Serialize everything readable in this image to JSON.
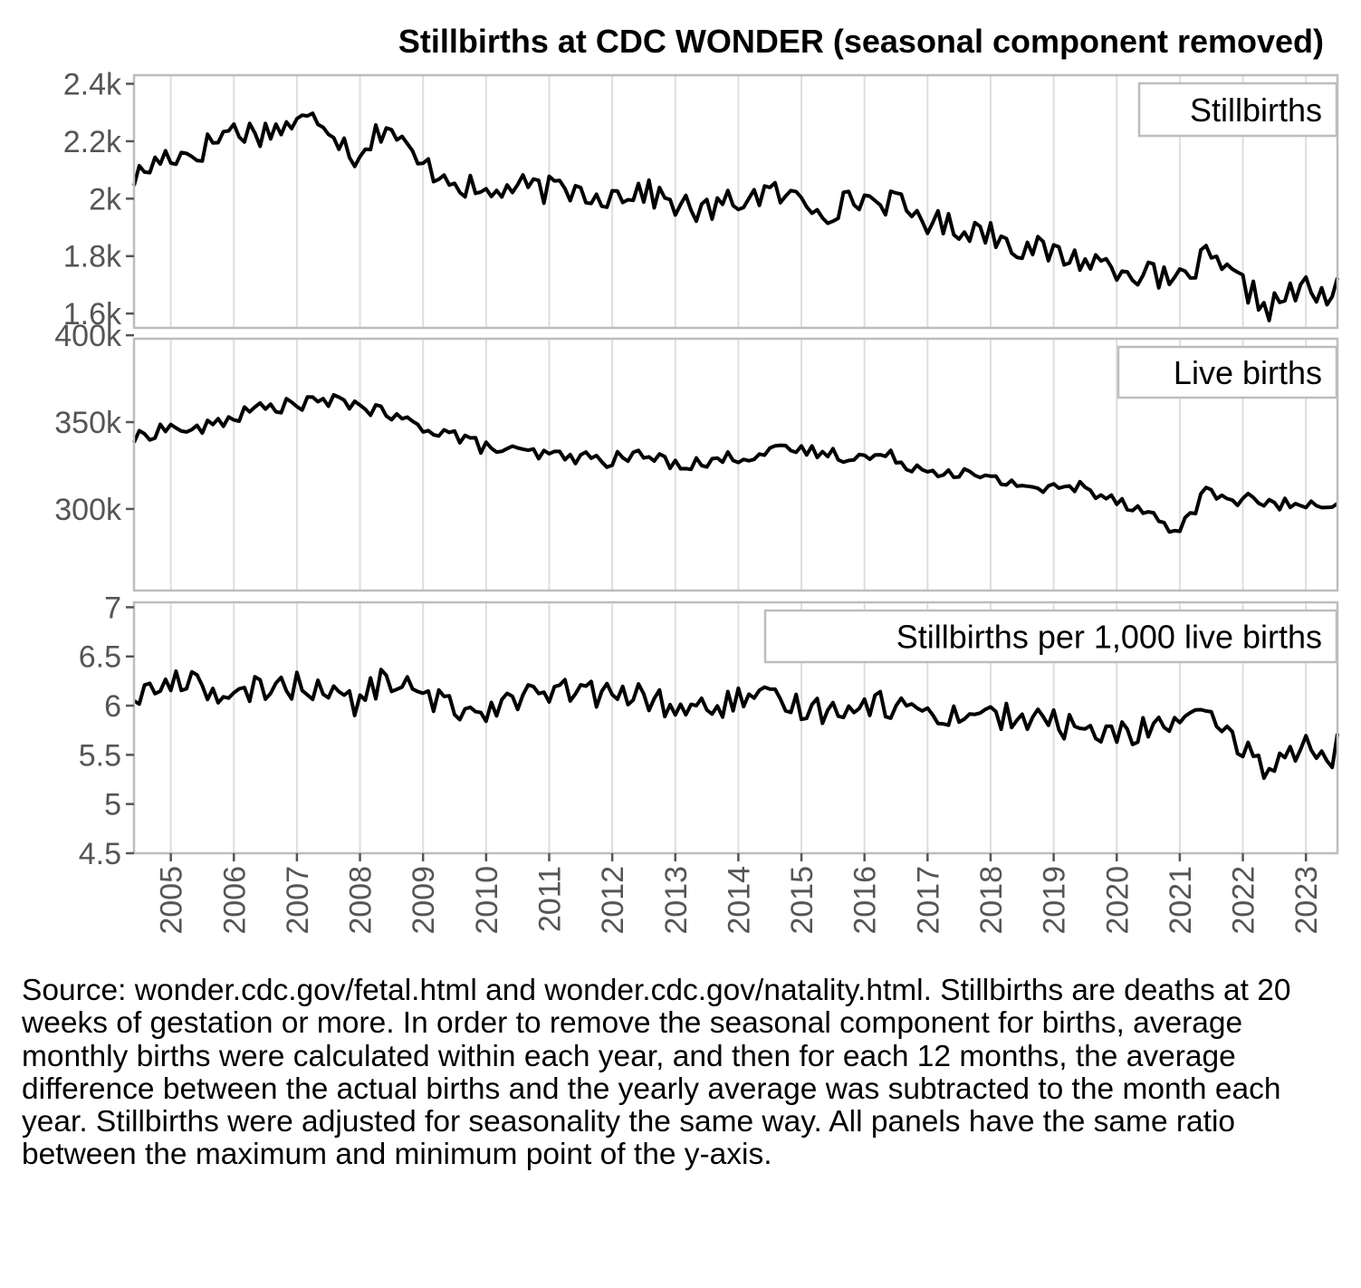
{
  "chart_data": {
    "type": "line",
    "title": "Stillbirths at CDC WONDER (seasonal component removed)",
    "x_tick_labels": [
      "2005",
      "2006",
      "2007",
      "2008",
      "2009",
      "2010",
      "2011",
      "2012",
      "2013",
      "2014",
      "2015",
      "2016",
      "2017",
      "2018",
      "2019",
      "2020",
      "2021",
      "2022",
      "2023"
    ],
    "x_range": [
      "2004-06",
      "2023-07"
    ],
    "grid": true,
    "panels": [
      {
        "name": "Stillbirths",
        "ylim": [
          1550,
          2430
        ],
        "y_ticks": [
          1600,
          1800,
          2000,
          2200,
          2400
        ],
        "y_tick_labels": [
          "1.6k",
          "1.8k",
          "2k",
          "2.2k",
          "2.4k"
        ],
        "knots": [
          [
            "2004-06",
            2070
          ],
          [
            "2004-12",
            2150
          ],
          [
            "2005-06",
            2160
          ],
          [
            "2005-12",
            2240
          ],
          [
            "2006-06",
            2230
          ],
          [
            "2006-12",
            2260
          ],
          [
            "2007-06",
            2280
          ],
          [
            "2007-12",
            2150
          ],
          [
            "2008-06",
            2260
          ],
          [
            "2008-12",
            2120
          ],
          [
            "2009-06",
            2080
          ],
          [
            "2009-12",
            2010
          ],
          [
            "2010-06",
            2040
          ],
          [
            "2010-12",
            2030
          ],
          [
            "2011-06",
            2030
          ],
          [
            "2011-12",
            2010
          ],
          [
            "2012-06",
            2030
          ],
          [
            "2012-12",
            1990
          ],
          [
            "2013-06",
            1950
          ],
          [
            "2013-12",
            1990
          ],
          [
            "2014-06",
            2020
          ],
          [
            "2014-12",
            2000
          ],
          [
            "2015-06",
            1960
          ],
          [
            "2015-12",
            2000
          ],
          [
            "2016-06",
            1990
          ],
          [
            "2016-12",
            1930
          ],
          [
            "2017-06",
            1900
          ],
          [
            "2017-12",
            1890
          ],
          [
            "2018-06",
            1840
          ],
          [
            "2018-12",
            1810
          ],
          [
            "2019-06",
            1790
          ],
          [
            "2019-12",
            1770
          ],
          [
            "2020-06",
            1740
          ],
          [
            "2020-12",
            1700
          ],
          [
            "2021-06",
            1790
          ],
          [
            "2021-12",
            1710
          ],
          [
            "2022-06",
            1620
          ],
          [
            "2022-12",
            1690
          ],
          [
            "2023-06",
            1640
          ],
          [
            "2023-07",
            1690
          ]
        ]
      },
      {
        "name": "Live births",
        "ylim": [
          253000,
          398000
        ],
        "y_ticks": [
          300000,
          350000,
          400000
        ],
        "y_tick_labels": [
          "300k",
          "350k",
          "400k"
        ],
        "knots": [
          [
            "2004-06",
            340000
          ],
          [
            "2004-12",
            347000
          ],
          [
            "2005-06",
            345000
          ],
          [
            "2005-12",
            352000
          ],
          [
            "2006-06",
            358000
          ],
          [
            "2006-12",
            360000
          ],
          [
            "2007-06",
            362000
          ],
          [
            "2007-12",
            361000
          ],
          [
            "2008-06",
            354000
          ],
          [
            "2008-12",
            348000
          ],
          [
            "2009-06",
            344000
          ],
          [
            "2009-12",
            336000
          ],
          [
            "2010-06",
            333000
          ],
          [
            "2010-12",
            331000
          ],
          [
            "2011-06",
            330000
          ],
          [
            "2011-12",
            328000
          ],
          [
            "2012-06",
            331000
          ],
          [
            "2012-12",
            327000
          ],
          [
            "2013-06",
            326000
          ],
          [
            "2013-12",
            330000
          ],
          [
            "2014-06",
            332000
          ],
          [
            "2014-12",
            334000
          ],
          [
            "2015-06",
            332000
          ],
          [
            "2015-12",
            330000
          ],
          [
            "2016-06",
            330000
          ],
          [
            "2016-12",
            323000
          ],
          [
            "2017-06",
            322000
          ],
          [
            "2017-12",
            317000
          ],
          [
            "2018-06",
            315000
          ],
          [
            "2018-12",
            311000
          ],
          [
            "2019-06",
            313000
          ],
          [
            "2019-12",
            307000
          ],
          [
            "2020-06",
            300000
          ],
          [
            "2020-12",
            286000
          ],
          [
            "2021-06",
            309000
          ],
          [
            "2021-12",
            306000
          ],
          [
            "2022-06",
            303000
          ],
          [
            "2022-12",
            302000
          ],
          [
            "2023-06",
            298000
          ],
          [
            "2023-07",
            300000
          ]
        ]
      },
      {
        "name": "Stillbirths per 1,000 live births",
        "ylim": [
          4.5,
          7.05
        ],
        "y_ticks": [
          4.5,
          5,
          5.5,
          6,
          6.5,
          7
        ],
        "y_tick_labels": [
          "4.5",
          "5",
          "5.5",
          "6",
          "6.5",
          "7"
        ],
        "knots": [
          [
            "2004-06",
            6.1
          ],
          [
            "2004-12",
            6.2
          ],
          [
            "2005-06",
            6.3
          ],
          [
            "2005-12",
            6.0
          ],
          [
            "2006-06",
            6.2
          ],
          [
            "2006-12",
            6.2
          ],
          [
            "2007-06",
            6.2
          ],
          [
            "2007-12",
            6.0
          ],
          [
            "2008-06",
            6.3
          ],
          [
            "2008-12",
            6.1
          ],
          [
            "2009-06",
            6.0
          ],
          [
            "2009-12",
            5.95
          ],
          [
            "2010-06",
            6.1
          ],
          [
            "2010-12",
            6.1
          ],
          [
            "2011-06",
            6.15
          ],
          [
            "2011-12",
            6.1
          ],
          [
            "2012-06",
            6.1
          ],
          [
            "2012-12",
            6.0
          ],
          [
            "2013-06",
            5.95
          ],
          [
            "2013-12",
            6.05
          ],
          [
            "2014-06",
            6.05
          ],
          [
            "2014-12",
            6.0
          ],
          [
            "2015-06",
            5.95
          ],
          [
            "2015-12",
            6.05
          ],
          [
            "2016-06",
            6.0
          ],
          [
            "2016-12",
            5.95
          ],
          [
            "2017-06",
            5.9
          ],
          [
            "2017-12",
            5.95
          ],
          [
            "2018-06",
            5.85
          ],
          [
            "2018-12",
            5.85
          ],
          [
            "2019-06",
            5.75
          ],
          [
            "2019-12",
            5.7
          ],
          [
            "2020-06",
            5.75
          ],
          [
            "2020-12",
            5.85
          ],
          [
            "2021-06",
            5.85
          ],
          [
            "2021-12",
            5.6
          ],
          [
            "2022-06",
            5.35
          ],
          [
            "2022-12",
            5.6
          ],
          [
            "2023-06",
            5.5
          ],
          [
            "2023-07",
            5.6
          ]
        ]
      }
    ]
  },
  "caption": "Source: wonder.cdc.gov/fetal.html and wonder.cdc.gov/natality.html. Stillbirths are deaths at 20 weeks of gestation or more. In order to remove the seasonal component for births, average monthly births were calculated within each year, and then for each 12 months, the average difference between the actual births and the yearly average was subtracted to the month each year. Stillbirths were adjusted for seasonality the same way. All panels have the same ratio between the maximum and minimum point of the y-axis.",
  "colors": {
    "line": "#000000",
    "grid": "#dedede",
    "panel_border": "#bdbdbd",
    "tick_text": "#555555"
  }
}
